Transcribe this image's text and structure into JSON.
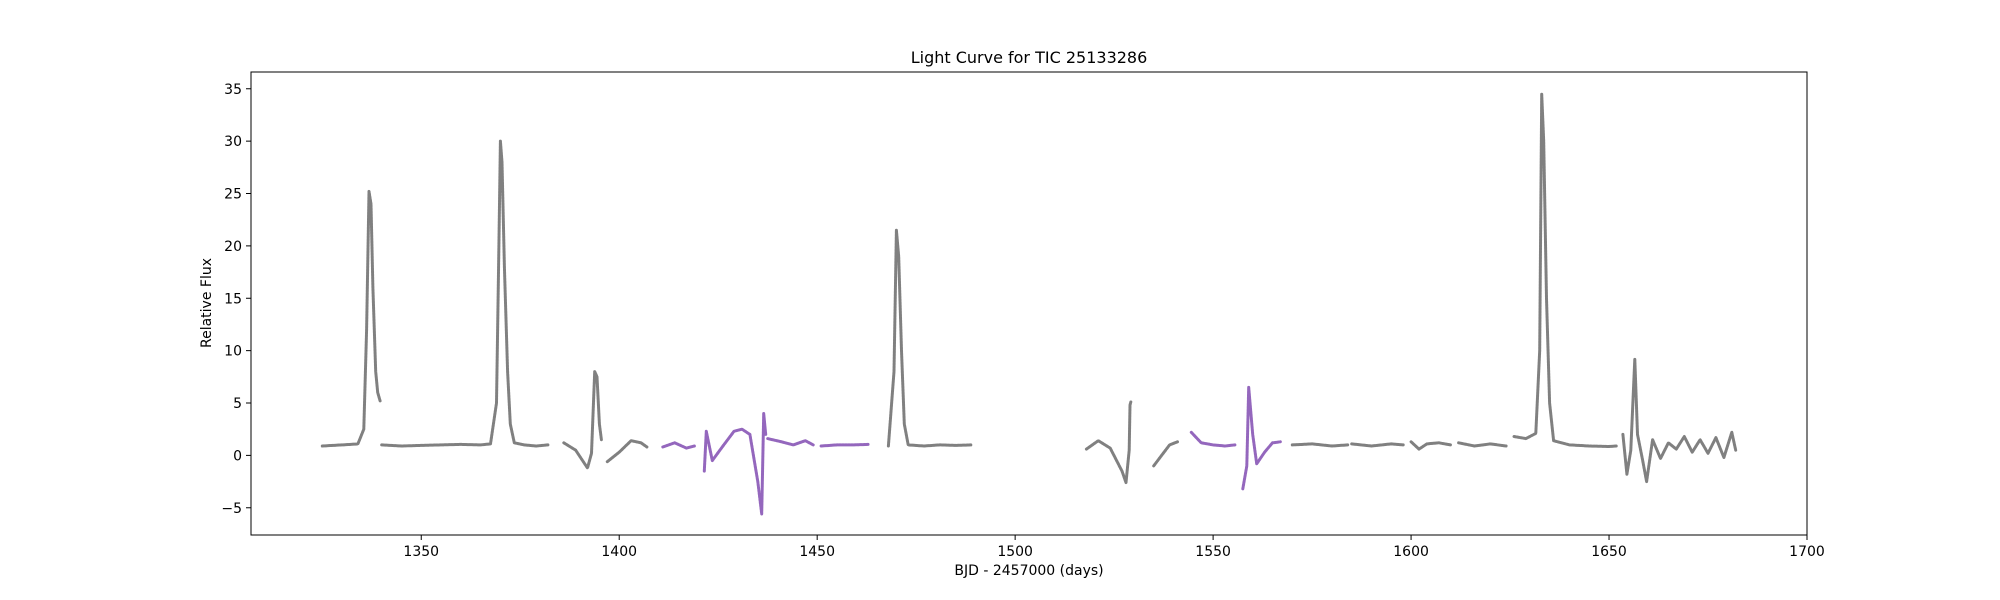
{
  "chart_data": {
    "type": "scatter",
    "title": "Light Curve for TIC 25133286",
    "xlabel": "BJD - 2457000 (days)",
    "ylabel": "Relative Flux",
    "xlim": [
      1307,
      1700
    ],
    "ylim": [
      -7.6,
      36.6
    ],
    "xticks": [
      1350,
      1400,
      1450,
      1500,
      1550,
      1600,
      1650,
      1700
    ],
    "yticks": [
      -5,
      0,
      5,
      10,
      15,
      20,
      25,
      30,
      35
    ],
    "grid": false,
    "legend": "none",
    "series": [
      {
        "color": "#808080",
        "segments": [
          [
            [
              1325,
              0.9
            ],
            [
              1330,
              1.0
            ],
            [
              1334,
              1.1
            ],
            [
              1335.5,
              2.5
            ],
            [
              1336.2,
              12
            ],
            [
              1336.8,
              25.2
            ],
            [
              1337.3,
              24
            ],
            [
              1337.8,
              16
            ],
            [
              1338.5,
              8
            ],
            [
              1339,
              6
            ],
            [
              1339.6,
              5.2
            ]
          ],
          [
            [
              1340,
              1.0
            ],
            [
              1345,
              0.9
            ],
            [
              1350,
              0.95
            ],
            [
              1355,
              1.0
            ],
            [
              1360,
              1.05
            ],
            [
              1365,
              1.0
            ],
            [
              1367.5,
              1.1
            ],
            [
              1369,
              5
            ],
            [
              1369.6,
              20
            ],
            [
              1370,
              30
            ],
            [
              1370.4,
              28
            ],
            [
              1371,
              18
            ],
            [
              1371.8,
              8
            ],
            [
              1372.5,
              3
            ],
            [
              1373.5,
              1.2
            ],
            [
              1376,
              1.0
            ],
            [
              1379,
              0.9
            ],
            [
              1382,
              1.0
            ]
          ],
          [
            [
              1386,
              1.2
            ],
            [
              1389,
              0.5
            ],
            [
              1392,
              -1.2
            ],
            [
              1393,
              0.2
            ],
            [
              1393.8,
              8
            ],
            [
              1394.4,
              7.5
            ],
            [
              1395,
              3
            ],
            [
              1395.5,
              1.5
            ]
          ],
          [
            [
              1397,
              -0.6
            ],
            [
              1400,
              0.3
            ],
            [
              1403,
              1.4
            ],
            [
              1405.5,
              1.2
            ],
            [
              1407,
              0.8
            ]
          ],
          [
            [
              1468,
              0.9
            ],
            [
              1469.4,
              8
            ],
            [
              1470,
              21.5
            ],
            [
              1470.6,
              19
            ],
            [
              1471.3,
              10
            ],
            [
              1472,
              3
            ],
            [
              1473,
              1.0
            ],
            [
              1477,
              0.9
            ],
            [
              1481,
              1.0
            ],
            [
              1485,
              0.95
            ],
            [
              1489,
              1.0
            ]
          ],
          [
            [
              1518,
              0.6
            ],
            [
              1521,
              1.4
            ],
            [
              1524,
              0.7
            ],
            [
              1527,
              -1.5
            ],
            [
              1528,
              -2.6
            ],
            [
              1528.8,
              0.5
            ],
            [
              1529,
              4.8
            ],
            [
              1529.2,
              5.1
            ]
          ],
          [
            [
              1535,
              -1.0
            ],
            [
              1537,
              0.0
            ],
            [
              1539,
              1.0
            ],
            [
              1541,
              1.3
            ]
          ],
          [
            [
              1570,
              1.0
            ],
            [
              1575,
              1.1
            ],
            [
              1580,
              0.9
            ],
            [
              1584,
              1.0
            ]
          ],
          [
            [
              1585,
              1.1
            ],
            [
              1590,
              0.9
            ],
            [
              1595,
              1.1
            ],
            [
              1598,
              1.0
            ]
          ],
          [
            [
              1600,
              1.3
            ],
            [
              1602,
              0.6
            ],
            [
              1604,
              1.1
            ],
            [
              1607,
              1.2
            ],
            [
              1610,
              1.0
            ]
          ],
          [
            [
              1612,
              1.2
            ],
            [
              1616,
              0.9
            ],
            [
              1620,
              1.1
            ],
            [
              1624,
              0.9
            ]
          ],
          [
            [
              1626,
              1.8
            ],
            [
              1629,
              1.6
            ],
            [
              1631.5,
              2.1
            ],
            [
              1632.5,
              10
            ],
            [
              1633,
              34.5
            ],
            [
              1633.5,
              30
            ],
            [
              1634.2,
              15
            ],
            [
              1635,
              5
            ],
            [
              1636,
              1.4
            ],
            [
              1640,
              1.0
            ],
            [
              1645,
              0.9
            ],
            [
              1650,
              0.85
            ],
            [
              1652,
              0.9
            ]
          ],
          [
            [
              1653.5,
              2.0
            ],
            [
              1654.5,
              -1.8
            ],
            [
              1655.5,
              0.5
            ],
            [
              1656.5,
              9.2
            ],
            [
              1657.2,
              2
            ],
            [
              1658.5,
              -0.5
            ],
            [
              1659.5,
              -2.5
            ],
            [
              1661,
              1.5
            ],
            [
              1663,
              -0.3
            ],
            [
              1665,
              1.2
            ],
            [
              1667,
              0.6
            ],
            [
              1669,
              1.8
            ],
            [
              1671,
              0.3
            ],
            [
              1673,
              1.5
            ],
            [
              1675,
              0.2
            ],
            [
              1677,
              1.7
            ],
            [
              1679,
              -0.2
            ],
            [
              1681,
              2.2
            ],
            [
              1682,
              0.5
            ]
          ]
        ]
      },
      {
        "color": "#9467bd",
        "segments": [
          [
            [
              1411,
              0.8
            ],
            [
              1414,
              1.2
            ],
            [
              1417,
              0.7
            ],
            [
              1419,
              0.9
            ]
          ],
          [
            [
              1421.5,
              -1.5
            ],
            [
              1422,
              2.3
            ],
            [
              1423.5,
              -0.5
            ],
            [
              1426,
              0.8
            ],
            [
              1429,
              2.3
            ],
            [
              1431,
              2.5
            ],
            [
              1433,
              2.0
            ],
            [
              1435,
              -2.5
            ],
            [
              1436,
              -5.6
            ],
            [
              1436.5,
              4.0
            ],
            [
              1437,
              2.0
            ]
          ],
          [
            [
              1437.5,
              1.6
            ],
            [
              1441,
              1.3
            ],
            [
              1444,
              1.0
            ],
            [
              1447,
              1.4
            ],
            [
              1449,
              1.0
            ]
          ],
          [
            [
              1451,
              0.9
            ],
            [
              1455,
              1.0
            ],
            [
              1459,
              1.0
            ],
            [
              1463,
              1.05
            ]
          ],
          [
            [
              1544.5,
              2.2
            ],
            [
              1547,
              1.2
            ],
            [
              1550,
              1.0
            ],
            [
              1553,
              0.9
            ],
            [
              1555.5,
              1.0
            ]
          ],
          [
            [
              1557.5,
              -3.2
            ],
            [
              1558.5,
              -1
            ],
            [
              1559,
              6.5
            ],
            [
              1560,
              2
            ],
            [
              1561,
              -0.8
            ],
            [
              1563,
              0.3
            ],
            [
              1565,
              1.2
            ],
            [
              1567,
              1.3
            ]
          ]
        ]
      }
    ]
  }
}
